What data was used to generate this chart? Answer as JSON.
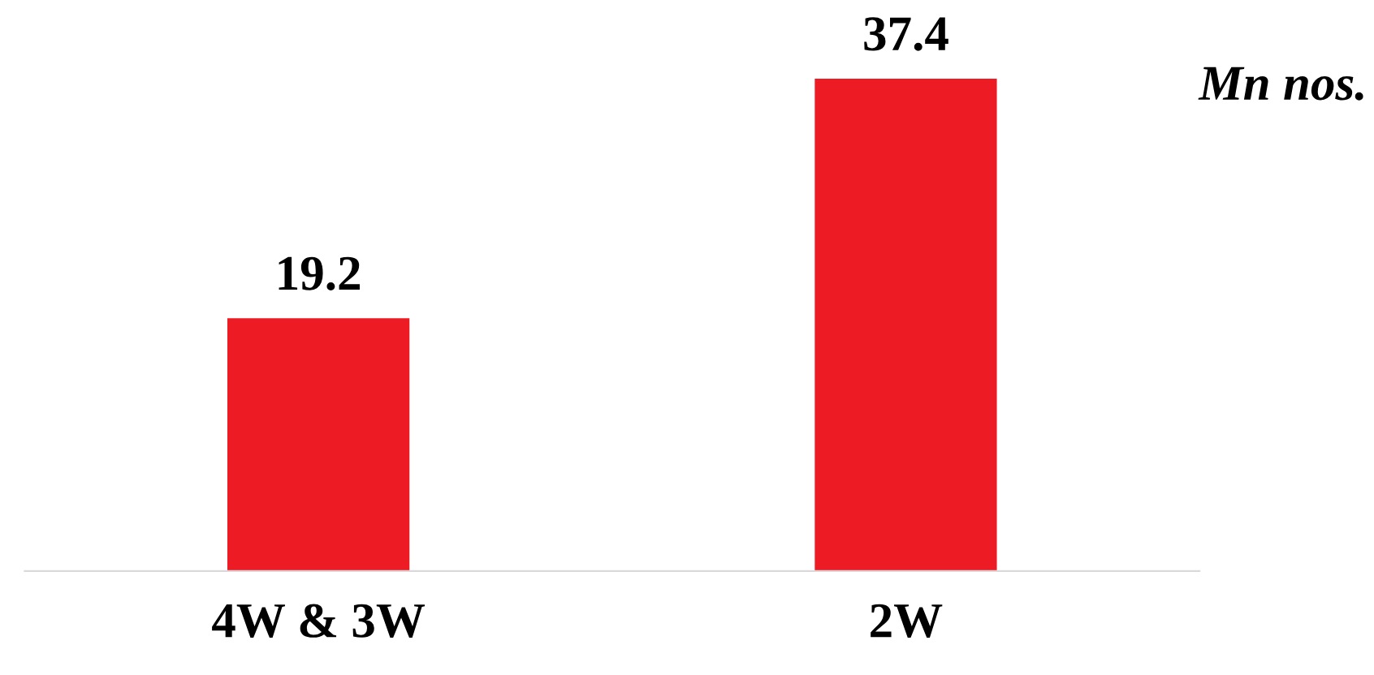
{
  "chart_data": {
    "type": "bar",
    "categories": [
      "4W & 3W",
      "2W"
    ],
    "values": [
      19.2,
      37.4
    ],
    "color": "#ed1c24",
    "data_labels": true,
    "annotations": [
      "Mn nos."
    ]
  }
}
